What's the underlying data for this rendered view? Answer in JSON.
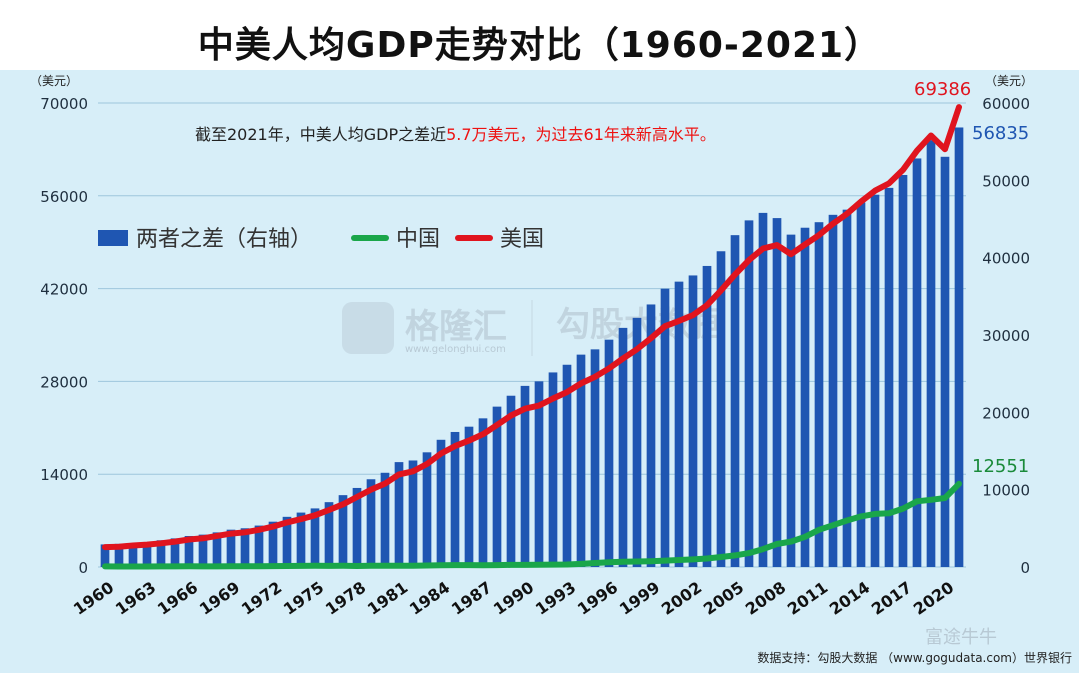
{
  "title": "中美人均GDP走势对比（1960-2021）",
  "annotation": {
    "prefix": "截至2021年，中美人均GDP之差近",
    "highlight": "5.7万美元，为过去61年来新高水平。"
  },
  "left_axis_unit": "（美元）",
  "right_axis_unit": "（美元）",
  "source": "数据支持：勾股大数据 （www.gogudata.com）世界银行",
  "watermarks": {
    "left": "格隆汇",
    "left_small": "www.gelonghui.com",
    "right": "勾股大数据",
    "corner": "富途牛牛"
  },
  "end_labels": {
    "us": "69386",
    "diff": "56835",
    "china": "12551"
  },
  "colors": {
    "diff": "#1f56b2",
    "china": "#1aa64a",
    "us": "#e0141e",
    "panel": "#d7eef8",
    "diff_label": "#1f56b2",
    "china_label": "#1a8a3a",
    "us_label": "#e0141e"
  },
  "chart_data": {
    "type": "bar+line",
    "title": "中美人均GDP走势对比（1960-2021）",
    "x_ticks": [
      "1960",
      "1963",
      "1966",
      "1969",
      "1972",
      "1975",
      "1978",
      "1981",
      "1984",
      "1987",
      "1990",
      "1993",
      "1996",
      "1999",
      "2002",
      "2005",
      "2008",
      "2011",
      "2014",
      "2017",
      "2020"
    ],
    "left_axis": {
      "ticks": [
        "0",
        "14000",
        "28000",
        "42000",
        "56000",
        "70000"
      ],
      "ylim": [
        0,
        70000
      ]
    },
    "right_axis": {
      "ticks": [
        "0",
        "10000",
        "20000",
        "30000",
        "40000",
        "50000",
        "60000"
      ],
      "ylim": [
        0,
        60000
      ]
    },
    "years": [
      1960,
      1961,
      1962,
      1963,
      1964,
      1965,
      1966,
      1967,
      1968,
      1969,
      1970,
      1971,
      1972,
      1973,
      1974,
      1975,
      1976,
      1977,
      1978,
      1979,
      1980,
      1981,
      1982,
      1983,
      1984,
      1985,
      1986,
      1987,
      1988,
      1989,
      1990,
      1991,
      1992,
      1993,
      1994,
      1995,
      1996,
      1997,
      1998,
      1999,
      2000,
      2001,
      2002,
      2003,
      2004,
      2005,
      2006,
      2007,
      2008,
      2009,
      2010,
      2011,
      2012,
      2013,
      2014,
      2015,
      2016,
      2017,
      2018,
      2019,
      2020,
      2021
    ],
    "series": [
      {
        "name": "两者之差（右轴）",
        "axis": "right",
        "kind": "bar",
        "values": [
          2919,
          2997,
          3079,
          3233,
          3459,
          3703,
          4009,
          4186,
          4477,
          4826,
          5009,
          5357,
          5860,
          6487,
          7037,
          7576,
          8385,
          9291,
          10222,
          11347,
          12184,
          13563,
          13775,
          14829,
          16449,
          17461,
          18144,
          19223,
          20737,
          22147,
          23420,
          24005,
          25160,
          26152,
          27461,
          28144,
          29396,
          30921,
          32219,
          33949,
          35989,
          36900,
          37701,
          38928,
          40829,
          42911,
          44822,
          45790,
          45117,
          42979,
          43871,
          44587,
          45540,
          46207,
          47130,
          48141,
          49026,
          50693,
          52830,
          55195,
          53044,
          56835
        ]
      },
      {
        "name": "中国",
        "axis": "left",
        "kind": "line",
        "values": [
          90,
          76,
          70,
          74,
          85,
          98,
          104,
          97,
          91,
          100,
          113,
          119,
          132,
          157,
          160,
          178,
          165,
          185,
          156,
          184,
          195,
          197,
          203,
          225,
          250,
          294,
          281,
          252,
          284,
          311,
          318,
          333,
          367,
          377,
          473,
          610,
          709,
          782,
          829,
          873,
          959,
          1053,
          1149,
          1289,
          1509,
          1753,
          2099,
          2694,
          3468,
          3832,
          4550,
          5618,
          6301,
          7020,
          7636,
          8016,
          8094,
          8817,
          9905,
          10144,
          10409,
          12551
        ]
      },
      {
        "name": "美国",
        "axis": "left",
        "kind": "line",
        "values": [
          3007,
          3067,
          3244,
          3375,
          3574,
          3828,
          4146,
          4336,
          4696,
          5032,
          5234,
          5609,
          6094,
          6726,
          7226,
          7801,
          8592,
          9453,
          10565,
          11674,
          12575,
          13976,
          14434,
          15544,
          17121,
          18237,
          19071,
          20039,
          21417,
          22857,
          23889,
          24342,
          25419,
          26387,
          27695,
          28691,
          29968,
          31459,
          32854,
          34515,
          36330,
          37134,
          37998,
          39490,
          41725,
          44123,
          46302,
          48050,
          48570,
          47195,
          48651,
          50066,
          51784,
          53291,
          55124,
          56763,
          57867,
          59915,
          62805,
          65095,
          63028,
          69386
        ]
      }
    ]
  }
}
